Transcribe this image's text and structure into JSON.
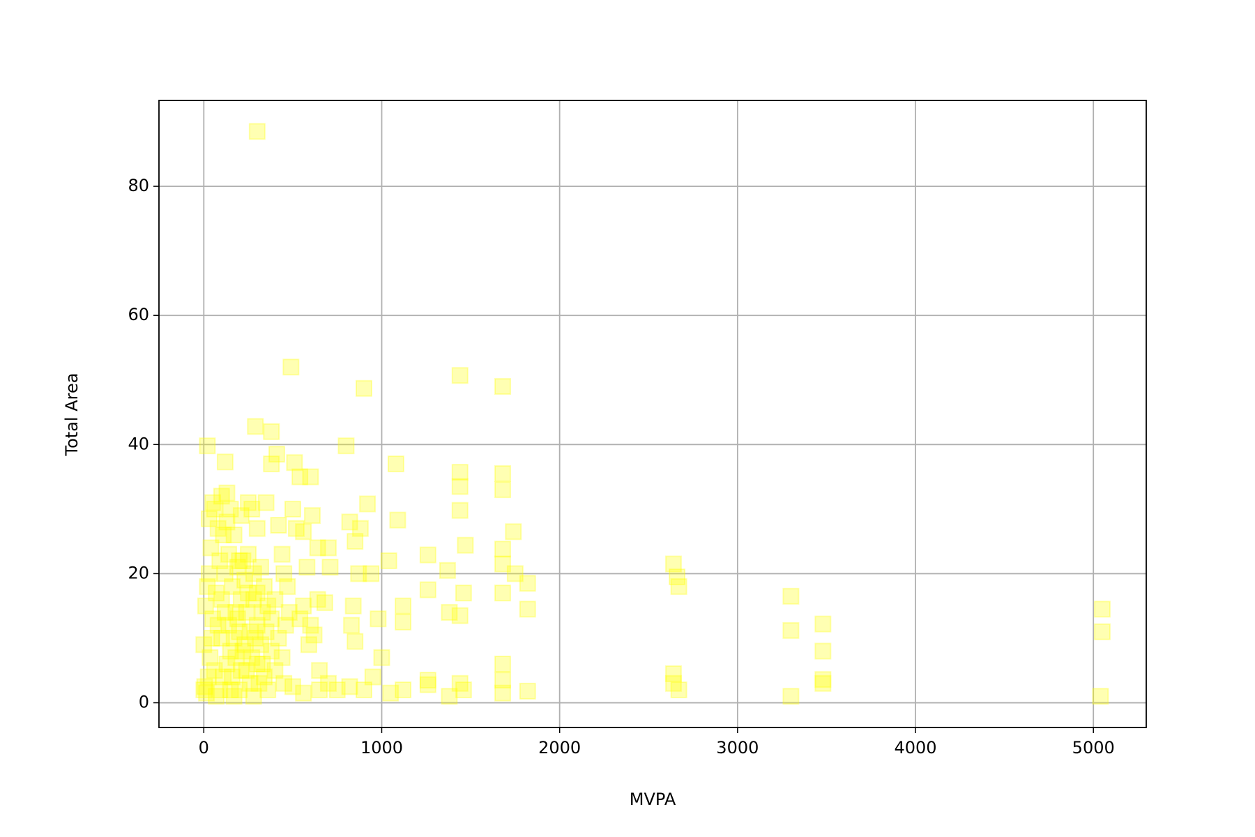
{
  "chart_data": {
    "type": "scatter",
    "x_label": "MVPA",
    "y_label": "Total Area",
    "x": [
      300,
      490,
      900,
      1440,
      1680,
      20,
      290,
      380,
      800,
      120,
      510,
      1080,
      1440,
      1680,
      1680,
      1440,
      920,
      1440,
      1090,
      1740,
      1470,
      1680,
      1680,
      1750,
      1260,
      1370,
      1820,
      1260,
      1460,
      1680,
      1820,
      1380,
      1440,
      2640,
      2660,
      2670,
      3300,
      3480,
      3300,
      3480,
      3480,
      3480,
      3300,
      5050,
      5050,
      5040,
      2640,
      2640,
      2670,
      1820,
      1680,
      1680,
      1680,
      1440,
      1460,
      1380,
      1260,
      1260,
      1120,
      1050,
      1000,
      980,
      1040,
      1120,
      1120,
      880,
      820,
      850,
      870,
      940,
      840,
      830,
      850,
      820,
      900,
      950,
      0,
      10,
      20,
      0,
      30,
      50,
      60,
      80,
      100,
      130,
      150,
      170,
      200,
      210,
      250,
      270,
      300,
      350,
      380,
      410,
      420,
      440,
      450,
      470,
      500,
      520,
      540,
      560,
      600,
      610,
      580,
      640,
      700,
      710,
      640,
      680,
      560,
      540,
      600,
      590,
      620,
      650,
      700,
      750,
      650,
      560,
      500,
      450,
      400,
      380,
      350,
      330,
      300,
      280,
      250,
      230,
      210,
      190,
      170,
      150,
      130,
      110,
      90,
      70,
      60,
      80,
      100,
      120,
      140,
      160,
      180,
      200,
      220,
      240,
      260,
      280,
      300,
      320,
      340,
      360,
      380,
      400,
      420,
      440,
      460,
      480,
      100,
      120,
      140,
      160,
      180,
      200,
      220,
      240,
      260,
      280,
      300,
      320,
      340,
      360,
      30,
      40,
      50,
      70,
      90,
      110,
      130,
      150,
      170,
      190,
      210,
      230,
      250,
      270,
      290,
      310,
      330,
      5,
      15,
      25,
      35,
      45
    ],
    "y": [
      88.5,
      52,
      48.7,
      50.7,
      49,
      39.8,
      42.8,
      42,
      39.8,
      37.3,
      37.2,
      37,
      35.7,
      35.5,
      33,
      33.5,
      30.8,
      29.8,
      28.3,
      26.5,
      24.4,
      23.8,
      21.5,
      20,
      22.9,
      20.5,
      18.5,
      17.5,
      17,
      17,
      14.5,
      14,
      13.5,
      21.5,
      19.5,
      18,
      16.5,
      12.2,
      11.2,
      8,
      3.6,
      3,
      1,
      14.5,
      11,
      1,
      4.5,
      3,
      2,
      1.8,
      6,
      3.5,
      1.5,
      3,
      2,
      1,
      3.5,
      2.8,
      2,
      1.5,
      7,
      13,
      22,
      15,
      12.5,
      27,
      28,
      25,
      20,
      20,
      15,
      12,
      9.5,
      2.5,
      2,
      4,
      2,
      15,
      18,
      9,
      28.5,
      31,
      30,
      27,
      32,
      32.5,
      30,
      26,
      22,
      29,
      31,
      30,
      27,
      31,
      37,
      38.5,
      27.5,
      23,
      20,
      18,
      30,
      27,
      35,
      26.5,
      35,
      29,
      21,
      24,
      24,
      21,
      16,
      15.5,
      15,
      13,
      12,
      9,
      10.5,
      5,
      3,
      2,
      2,
      1.5,
      2.5,
      3,
      5,
      8,
      11,
      14,
      17,
      20,
      23,
      19,
      16,
      13,
      10,
      8,
      6,
      4,
      2,
      1,
      5,
      12,
      16,
      20,
      23,
      18,
      14,
      11,
      8,
      5,
      3,
      1,
      6,
      9,
      4,
      2,
      13,
      16,
      10,
      7,
      12,
      14,
      10,
      14,
      12,
      4,
      7,
      2,
      22,
      14,
      11,
      16,
      12,
      21,
      18,
      15,
      20,
      24,
      13,
      17,
      22,
      26,
      28,
      2,
      1,
      21,
      5,
      9,
      17,
      7,
      10,
      3,
      6,
      2.5,
      1.5,
      4,
      7,
      10
    ],
    "color": "#ffff00",
    "xlim": [
      -252,
      5297
    ],
    "ylim": [
      -3.83,
      93.3
    ],
    "xticks": [
      0,
      1000,
      2000,
      3000,
      4000,
      5000
    ],
    "yticks": [
      0,
      20,
      40,
      60,
      80
    ],
    "grid": true
  }
}
